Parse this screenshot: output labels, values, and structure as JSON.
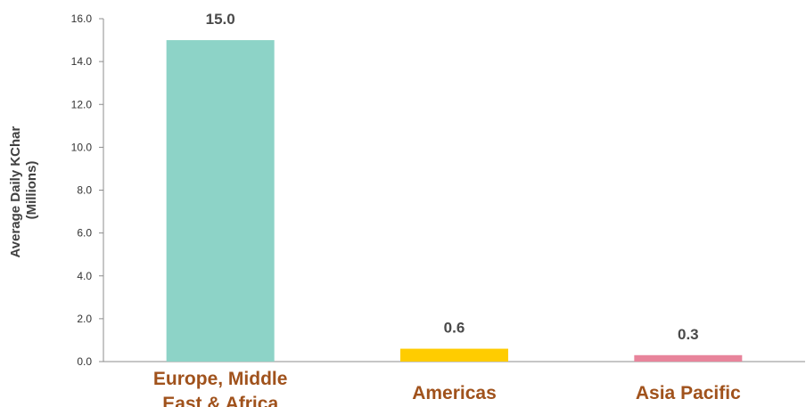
{
  "chart_data": {
    "type": "bar",
    "categories": [
      "Europe, Middle East & Africa",
      "Americas",
      "Asia Pacific"
    ],
    "category_lines": [
      [
        "Europe, Middle",
        "East & Africa"
      ],
      [
        "Americas"
      ],
      [
        "Asia Pacific"
      ]
    ],
    "values": [
      15.0,
      0.6,
      0.3
    ],
    "data_labels": [
      "15.0",
      "0.6",
      "0.3"
    ],
    "ylabel_lines": [
      "Average Daily KChar",
      "(Millions)"
    ],
    "ylim": [
      0,
      16
    ],
    "yticks": [
      "0.0",
      "2.0",
      "4.0",
      "6.0",
      "8.0",
      "10.0",
      "12.0",
      "14.0",
      "16.0"
    ],
    "grid": false,
    "colors": {
      "bars": [
        "#8dd3c7",
        "#ffcc00",
        "#e8849b"
      ],
      "axis": "#8c8c8c",
      "category_text": "#a0521c"
    }
  }
}
